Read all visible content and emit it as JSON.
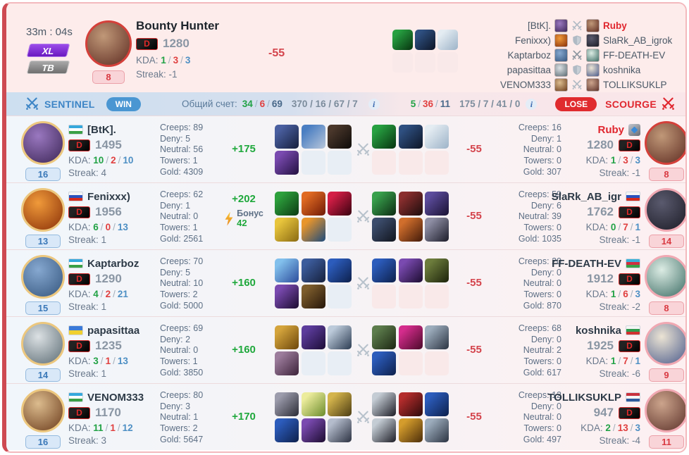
{
  "labels": {
    "kda": "KDA:",
    "streak": "Streak:",
    "creeps": "Creeps:",
    "deny": "Deny:",
    "neutral": "Neutral:",
    "towers": "Towers:",
    "gold": "Gold:",
    "bonus": "Бонус",
    "d": "D",
    "slash": "/",
    "info": "i"
  },
  "header": {
    "timer": "33m : 04s",
    "badge_xl": "XL",
    "badge_tb": "TB",
    "hero": {
      "name": "Bounty Hunter",
      "rating": "1280",
      "kda": [
        "1",
        "3",
        "3"
      ],
      "streak": "-1",
      "level": "8",
      "delta": "-55",
      "avatar": [
        "#c09878",
        "#5e2c22"
      ],
      "border": "#d4403a"
    },
    "items": [
      [
        "#27a041",
        "#07330f"
      ],
      [
        "#2e4f80",
        "#0d1526"
      ],
      [
        "#e4ecf2",
        "#9db3c8"
      ],
      null,
      null,
      null
    ],
    "matchup": [
      {
        "left": "[BtK].",
        "right": "Ruby",
        "icon": "swords",
        "right_red": true,
        "left_avatar": [
          "#9a78c0",
          "#3c2656"
        ],
        "right_avatar": [
          "#c09878",
          "#5e2c22"
        ]
      },
      {
        "left": "Fenixxx)",
        "right": "SlaRk_AB_igrok",
        "icon": "shield",
        "left_avatar": [
          "#f09a3a",
          "#8a3008"
        ],
        "right_avatar": [
          "#5a5a6e",
          "#1c1c26"
        ]
      },
      {
        "left": "Kaptarboz",
        "right": "FF-DEATH-EV",
        "icon": "swords_dark",
        "left_avatar": [
          "#86a8d0",
          "#35567e"
        ],
        "right_avatar": [
          "#dcece4",
          "#3c6c64"
        ]
      },
      {
        "left": "papasittaa",
        "right": "koshnika",
        "icon": "shield",
        "left_avatar": [
          "#dce1e4",
          "#5c6c74"
        ],
        "right_avatar": [
          "#ece4d4",
          "#4c5c8c"
        ]
      },
      {
        "left": "VENOM333",
        "right": "TOLLIKSUKLP",
        "icon": "swords",
        "left_avatar": [
          "#dcbc8e",
          "#6c3c1c"
        ],
        "right_avatar": [
          "#cca48c",
          "#5c322a"
        ]
      }
    ]
  },
  "scorebar": {
    "left_team": "SENTINEL",
    "left_result": "WIN",
    "score_label": "Общий счет:",
    "left_kda": [
      "34",
      "6",
      "69"
    ],
    "left_extra": "370 / 16 / 67 / 7",
    "right_kda": [
      "5",
      "36",
      "11"
    ],
    "right_extra": "175 / 7 / 41 / 0",
    "right_result": "LOSE",
    "right_team": "SCOURGE"
  },
  "flag_defs": {
    "uz": [
      "#35a8dc",
      "#ffffff",
      "#3aa046"
    ],
    "ru": [
      "#f5f5f5",
      "#2a52be",
      "#d52b1e"
    ],
    "az": [
      "#3ab0d8",
      "#d03040",
      "#3aa046"
    ],
    "ua": [
      "#3a7ad8",
      "#f0d030"
    ],
    "bg": [
      "#f5f5f5",
      "#2e9a4e",
      "#d03030"
    ],
    "nl": [
      "#c8313e",
      "#f5f5f5",
      "#2e5a9c"
    ]
  },
  "rows": [
    {
      "left": {
        "level": "16",
        "flag": "uz",
        "name": "[BtK].",
        "rating": "1495",
        "kda": [
          "10",
          "2",
          "10"
        ],
        "streak": "4",
        "stats": {
          "creeps": "89",
          "deny": "5",
          "neutral": "56",
          "towers": "1",
          "gold": "4309"
        },
        "delta": "+175",
        "avatar": [
          "#9a78c0",
          "#3c2656"
        ]
      },
      "left_items": [
        [
          "#4a5fa0",
          "#151e3c"
        ],
        [
          "#4a7ec2",
          "#b8c6da"
        ],
        [
          "#4a372b",
          "#0e0b09"
        ],
        [
          "#7a4ab0",
          "#221040"
        ],
        null,
        null
      ],
      "right_items": [
        [
          "#27a041",
          "#07330f"
        ],
        [
          "#2e4f80",
          "#0d1526"
        ],
        [
          "#e4ecf2",
          "#9db3c8"
        ],
        null,
        null,
        null
      ],
      "right": {
        "delta": "-55",
        "stats": {
          "creeps": "16",
          "deny": "1",
          "neutral": "0",
          "towers": "0",
          "gold": "307"
        },
        "name": "Ruby",
        "name_red": true,
        "medal": true,
        "rating": "1280",
        "kda": [
          "1",
          "3",
          "3"
        ],
        "streak": "-1",
        "level": "8",
        "avatar": [
          "#c09878",
          "#5e2c22"
        ],
        "border": "#d4403a"
      }
    },
    {
      "left": {
        "level": "13",
        "flag": "ru",
        "name": "Fenixxx)",
        "rating": "1956",
        "kda": [
          "6",
          "0",
          "13"
        ],
        "streak": "1",
        "stats": {
          "creeps": "62",
          "deny": "1",
          "neutral": "0",
          "towers": "1",
          "gold": "2561"
        },
        "delta": "+202",
        "bonus": "42",
        "avatar": [
          "#f09a3a",
          "#8a3008"
        ]
      },
      "left_items": [
        [
          "#2da03c",
          "#0b3a13"
        ],
        [
          "#e06a22",
          "#701a06"
        ],
        [
          "#d41e46",
          "#380210"
        ],
        [
          "#e8c53c",
          "#8a6a12"
        ],
        [
          "#e8952c",
          "#1c4a7c"
        ],
        null
      ],
      "right_items": [
        [
          "#38a04c",
          "#0c2a12"
        ],
        [
          "#8a2e2e",
          "#1c0d0d"
        ],
        [
          "#5c4c9c",
          "#191132"
        ],
        [
          "#3c4c6c",
          "#11151d"
        ],
        [
          "#d06e2c",
          "#421a0a"
        ],
        [
          "#8e8ea4",
          "#1d1d2a"
        ]
      ],
      "right": {
        "delta": "-55",
        "stats": {
          "creeps": "59",
          "deny": "6",
          "neutral": "39",
          "towers": "0",
          "gold": "1035"
        },
        "name": "SlaRk_AB_igr",
        "flag": "ru",
        "rating": "1762",
        "kda": [
          "0",
          "7",
          "1"
        ],
        "streak": "-1",
        "level": "14",
        "avatar": [
          "#5a5a6e",
          "#1c1c26"
        ],
        "border": "#f0a8b2"
      }
    },
    {
      "left": {
        "level": "15",
        "flag": "uz",
        "name": "Kaptarboz",
        "rating": "1290",
        "kda": [
          "4",
          "2",
          "21"
        ],
        "streak": "1",
        "stats": {
          "creeps": "70",
          "deny": "5",
          "neutral": "10",
          "towers": "2",
          "gold": "5000"
        },
        "delta": "+160",
        "avatar": [
          "#86a8d0",
          "#35567e"
        ]
      },
      "left_items": [
        [
          "#82c0ec",
          "#2c4c9c"
        ],
        [
          "#3c5c9c",
          "#16203c"
        ],
        [
          "#2c5cbc",
          "#0d204c"
        ],
        [
          "#7a4ab0",
          "#1c0c30"
        ],
        [
          "#7c5c2c",
          "#26160a"
        ],
        null
      ],
      "right_items": [
        [
          "#2c5cbc",
          "#0d204c"
        ],
        [
          "#7a4ab0",
          "#1c0c30"
        ],
        [
          "#6c7c3c",
          "#1c220a"
        ],
        null,
        null,
        null
      ],
      "right": {
        "delta": "-55",
        "stats": {
          "creeps": "20",
          "deny": "0",
          "neutral": "0",
          "towers": "0",
          "gold": "870"
        },
        "name": "FF-DEATH-EV",
        "flag": "az",
        "rating": "1912",
        "kda": [
          "1",
          "6",
          "3"
        ],
        "streak": "-2",
        "level": "8",
        "avatar": [
          "#dcece4",
          "#3c6c64"
        ],
        "border": "#f0a8b2"
      }
    },
    {
      "left": {
        "level": "14",
        "flag": "ua",
        "name": "papasittaa",
        "rating": "1235",
        "kda": [
          "3",
          "1",
          "13"
        ],
        "streak": "1",
        "stats": {
          "creeps": "69",
          "deny": "2",
          "neutral": "0",
          "towers": "1",
          "gold": "3850"
        },
        "delta": "+160",
        "avatar": [
          "#dce1e4",
          "#5c6c74"
        ]
      },
      "left_items": [
        [
          "#d4a43c",
          "#6c460a"
        ],
        [
          "#5c3c9c",
          "#1c0c36"
        ],
        [
          "#bccada",
          "#2c3c52"
        ],
        [
          "#9c7c9c",
          "#3c2239"
        ],
        null,
        null
      ],
      "right_items": [
        [
          "#5c7c4c",
          "#1c2612"
        ],
        [
          "#d42c8c",
          "#4c0a2a"
        ],
        [
          "#9cacbc",
          "#2c3442"
        ],
        [
          "#2c5cbc",
          "#0d204c"
        ],
        null,
        null
      ],
      "right": {
        "delta": "-55",
        "stats": {
          "creeps": "68",
          "deny": "0",
          "neutral": "2",
          "towers": "0",
          "gold": "617"
        },
        "name": "koshnika",
        "flag": "bg",
        "rating": "1925",
        "kda": [
          "1",
          "7",
          "1"
        ],
        "streak": "-6",
        "level": "9",
        "avatar": [
          "#ece4d4",
          "#4c5c8c"
        ],
        "border": "#f0a8b2"
      }
    },
    {
      "left": {
        "level": "16",
        "flag": "uz",
        "name": "VENOM333",
        "rating": "1170",
        "kda": [
          "11",
          "1",
          "12"
        ],
        "streak": "3",
        "stats": {
          "creeps": "80",
          "deny": "3",
          "neutral": "1",
          "towers": "2",
          "gold": "5647"
        },
        "delta": "+170",
        "avatar": [
          "#dcbc8e",
          "#6c3c1c"
        ]
      },
      "left_items": [
        [
          "#9c9cac",
          "#2c2c36"
        ],
        [
          "#ecec9c",
          "#6c8c2c"
        ],
        [
          "#d4b44c",
          "#4c3c12"
        ],
        [
          "#2c5cbc",
          "#0d204c"
        ],
        [
          "#7a4ab0",
          "#1c0c30"
        ],
        [
          "#b4bccc",
          "#2c3242"
        ]
      ],
      "right_items": [
        [
          "#c4ccd4",
          "#1d1d26"
        ],
        [
          "#b42c2c",
          "#2c0a0a"
        ],
        [
          "#2c5cbc",
          "#0d204c"
        ],
        [
          "#c4ccd4",
          "#1d1d26"
        ],
        [
          "#d49c2c",
          "#4c2e0a"
        ],
        [
          "#9cacbc",
          "#2c3442"
        ]
      ],
      "right": {
        "delta": "-55",
        "stats": {
          "creeps": "12",
          "deny": "0",
          "neutral": "0",
          "towers": "0",
          "gold": "497"
        },
        "name": "TOLLIKSUKLP",
        "flag": "nl",
        "rating": "947",
        "kda": [
          "2",
          "13",
          "3"
        ],
        "streak": "-4",
        "level": "11",
        "avatar": [
          "#cca48c",
          "#5c322a"
        ],
        "border": "#f0a8b2"
      }
    }
  ]
}
